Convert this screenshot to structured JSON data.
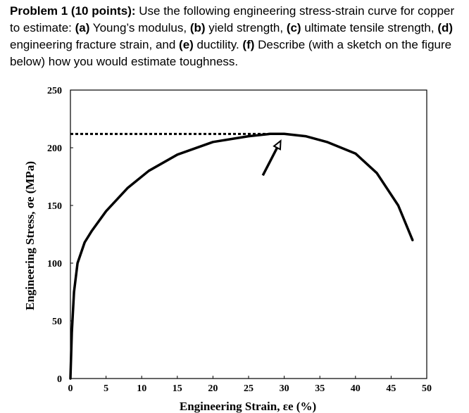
{
  "problem": {
    "heading": "Problem 1 (10 points):",
    "intro": " Use the following engineering stress-strain curve for copper to estimate: ",
    "a_label": "(a)",
    "a_text": " Young’s modulus, ",
    "b_label": "(b)",
    "b_text": " yield strength, ",
    "c_label": "(c)",
    "c_text": " ultimate tensile strength, ",
    "d_label": "(d)",
    "d_text": " engineering fracture strain, and ",
    "e_label": "(e)",
    "e_text": " ductility.  ",
    "f_label": "(f)",
    "f_text": " Describe (with a sketch on the figure below) how you would estimate toughness."
  },
  "chart_data": {
    "type": "line",
    "xlabel": "Engineering Strain, εe (%)",
    "ylabel": "Engineering Stress, σe  (MPa)",
    "xlim": [
      0,
      50
    ],
    "ylim": [
      0,
      250
    ],
    "x_ticks": [
      0,
      5,
      10,
      15,
      20,
      25,
      30,
      35,
      40,
      45,
      50
    ],
    "y_ticks": [
      0,
      50,
      100,
      150,
      200,
      250
    ],
    "grid": false,
    "series": [
      {
        "x": [
          0,
          0.2,
          0.5,
          1,
          2,
          3,
          5,
          8,
          11,
          15,
          20,
          25,
          28,
          30,
          33,
          36,
          40,
          43,
          46,
          48
        ],
        "y": [
          0,
          40,
          75,
          100,
          118,
          128,
          145,
          165,
          180,
          194,
          205,
          210,
          212,
          212,
          210,
          205,
          195,
          178,
          150,
          120
        ]
      }
    ],
    "annotations": [
      {
        "type": "dashed-line",
        "from": [
          0,
          212
        ],
        "to": [
          28.5,
          212
        ]
      },
      {
        "type": "arrow",
        "from": [
          27,
          176
        ],
        "to": [
          29.5,
          206
        ]
      }
    ]
  }
}
